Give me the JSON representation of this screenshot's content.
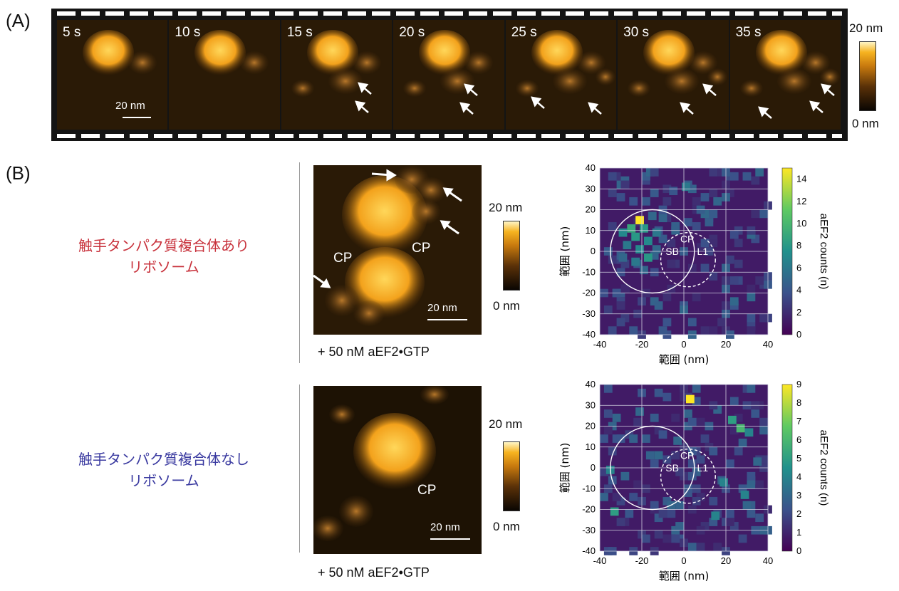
{
  "panelA": {
    "label": "(A)",
    "frames": [
      "5 s",
      "10 s",
      "15 s",
      "20 s",
      "25 s",
      "30 s",
      "35 s"
    ],
    "scale_bar": "20 nm",
    "colorbar": {
      "max": "20 nm",
      "min": "0 nm"
    }
  },
  "panelB": {
    "label": "(B)",
    "row1": {
      "label_line1": "触手タンパク質複合体あり",
      "label_line2": "リボソーム",
      "label_color": "#c8323c",
      "image_labels": [
        "CP",
        "CP"
      ],
      "scale_bar": "20 nm",
      "caption": "+ 50 nM aEF2•GTP",
      "colorbar": {
        "max": "20 nm",
        "min": "0 nm"
      }
    },
    "row2": {
      "label_line1": "触手タンパク質複合体なし",
      "label_line2": "リボソーム",
      "label_color": "#3a3aa0",
      "image_labels": [
        "CP"
      ],
      "scale_bar": "20 nm",
      "caption": "+ 50 nM aEF2•GTP",
      "colorbar": {
        "max": "20 nm",
        "min": "0 nm"
      }
    }
  },
  "chart_data": [
    {
      "type": "heatmap",
      "xlabel": "範囲 (nm)",
      "ylabel": "範囲 (nm)",
      "xlim": [
        -40,
        40
      ],
      "ylim": [
        -40,
        40
      ],
      "xticks": [
        -40,
        -20,
        0,
        20,
        40
      ],
      "yticks": [
        40,
        30,
        20,
        10,
        0,
        -10,
        -20,
        -30,
        -40
      ],
      "colorbar_label": "aEF2 counts (n)",
      "colorbar_ticks": [
        14,
        12,
        10,
        8,
        6,
        4,
        2,
        0
      ],
      "colorbar_range": [
        0,
        15
      ],
      "grid": true,
      "annotations": [
        "SB",
        "CP",
        "L1"
      ],
      "circles": [
        {
          "cx": -15,
          "cy": 0,
          "r": 20,
          "style": "solid"
        },
        {
          "cx": 2,
          "cy": -4,
          "r": 13,
          "style": "dashed"
        }
      ],
      "hot_cells": [
        {
          "x": -22,
          "y": 16,
          "v": 15
        },
        {
          "x": -26,
          "y": 12,
          "v": 9
        },
        {
          "x": -20,
          "y": 12,
          "v": 8
        },
        {
          "x": -30,
          "y": 10,
          "v": 7
        },
        {
          "x": -24,
          "y": 8,
          "v": 8
        },
        {
          "x": -18,
          "y": 6,
          "v": 7
        },
        {
          "x": -28,
          "y": 4,
          "v": 6
        },
        {
          "x": -22,
          "y": 2,
          "v": 7
        },
        {
          "x": -18,
          "y": -2,
          "v": 8
        },
        {
          "x": -24,
          "y": -4,
          "v": 6
        },
        {
          "x": -30,
          "y": -2,
          "v": 5
        },
        {
          "x": -14,
          "y": 10,
          "v": 6
        },
        {
          "x": -16,
          "y": 18,
          "v": 5
        },
        {
          "x": 0,
          "y": 32,
          "v": 6
        },
        {
          "x": -6,
          "y": 30,
          "v": 4
        },
        {
          "x": -20,
          "y": -8,
          "v": 5
        },
        {
          "x": -14,
          "y": 2,
          "v": 5
        }
      ]
    },
    {
      "type": "heatmap",
      "xlabel": "範囲 (nm)",
      "ylabel": "範囲 (nm)",
      "xlim": [
        -40,
        40
      ],
      "ylim": [
        -40,
        40
      ],
      "xticks": [
        -40,
        -20,
        0,
        20,
        40
      ],
      "yticks": [
        40,
        30,
        20,
        10,
        0,
        -10,
        -20,
        -30,
        -40
      ],
      "colorbar_label": "aEF2 counts (n)",
      "colorbar_ticks": [
        9,
        8,
        7,
        6,
        5,
        4,
        3,
        2,
        1,
        0
      ],
      "colorbar_range": [
        0,
        9
      ],
      "grid": true,
      "annotations": [
        "SB",
        "CP",
        "L1"
      ],
      "circles": [
        {
          "cx": -15,
          "cy": 0,
          "r": 20,
          "style": "solid"
        },
        {
          "cx": 2,
          "cy": -4,
          "r": 13,
          "style": "dashed"
        }
      ],
      "hot_cells": [
        {
          "x": 2,
          "y": 34,
          "v": 9
        },
        {
          "x": 22,
          "y": 24,
          "v": 5
        },
        {
          "x": 26,
          "y": 20,
          "v": 6
        },
        {
          "x": 30,
          "y": 18,
          "v": 4
        },
        {
          "x": -34,
          "y": -20,
          "v": 5
        },
        {
          "x": -36,
          "y": 0,
          "v": 4
        },
        {
          "x": 28,
          "y": -12,
          "v": 4
        },
        {
          "x": 18,
          "y": -6,
          "v": 4
        },
        {
          "x": -22,
          "y": 28,
          "v": 3
        },
        {
          "x": 14,
          "y": -22,
          "v": 4
        },
        {
          "x": -4,
          "y": 14,
          "v": 3
        },
        {
          "x": 34,
          "y": 4,
          "v": 3
        }
      ]
    }
  ]
}
